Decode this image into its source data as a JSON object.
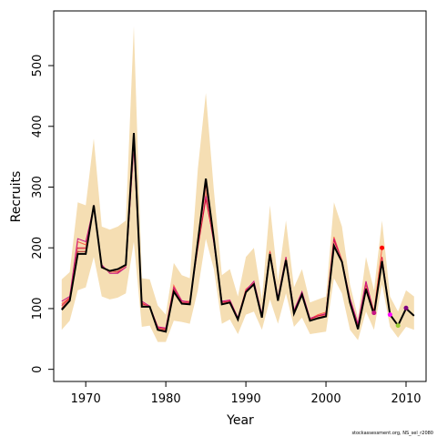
{
  "chart_data": {
    "type": "line",
    "title": "",
    "xlabel": "Year",
    "ylabel": "Recruits",
    "xlim": [
      1966,
      2012.5
    ],
    "ylim": [
      -20,
      590
    ],
    "xticks": [
      1970,
      1980,
      1990,
      2000,
      2010
    ],
    "yticks": [
      0,
      100,
      200,
      300,
      400,
      500
    ],
    "grid": false,
    "legend": "none",
    "footnote": "stockassessment.org, NS_sel_r2080",
    "colors": {
      "band": "#F5DEB3",
      "estimate": "#000000",
      "retro": [
        "#FF6347",
        "#C71585",
        "#DC143C",
        "#E9967A",
        "#B22222"
      ],
      "endpoints": [
        "#FF0000",
        "#C71585",
        "#FF00FF",
        "#9ACD32",
        "#800080"
      ]
    },
    "x": [
      1967,
      1968,
      1969,
      1970,
      1971,
      1972,
      1973,
      1974,
      1975,
      1976,
      1977,
      1978,
      1979,
      1980,
      1981,
      1982,
      1983,
      1984,
      1985,
      1986,
      1987,
      1988,
      1989,
      1990,
      1991,
      1992,
      1993,
      1994,
      1995,
      1996,
      1997,
      1998,
      1999,
      2000,
      2001,
      2002,
      2003,
      2004,
      2005,
      2006,
      2007,
      2008,
      2009,
      2010,
      2011
    ],
    "band_upper": [
      148,
      160,
      275,
      270,
      380,
      235,
      230,
      235,
      245,
      565,
      150,
      148,
      105,
      90,
      175,
      155,
      150,
      330,
      455,
      295,
      155,
      165,
      120,
      185,
      200,
      115,
      270,
      145,
      245,
      135,
      165,
      110,
      115,
      120,
      275,
      235,
      140,
      85,
      185,
      130,
      245,
      120,
      95,
      130,
      120
    ],
    "band_lower": [
      65,
      80,
      130,
      135,
      185,
      120,
      115,
      118,
      125,
      210,
      70,
      72,
      45,
      45,
      80,
      78,
      75,
      130,
      215,
      165,
      75,
      82,
      58,
      90,
      95,
      65,
      115,
      75,
      125,
      70,
      85,
      58,
      60,
      62,
      150,
      125,
      65,
      48,
      95,
      65,
      140,
      70,
      52,
      70,
      65
    ],
    "estimate": [
      98,
      113,
      190,
      190,
      270,
      168,
      162,
      165,
      172,
      389,
      103,
      103,
      65,
      62,
      128,
      108,
      107,
      210,
      314,
      215,
      107,
      110,
      82,
      127,
      140,
      85,
      190,
      113,
      180,
      92,
      123,
      80,
      84,
      87,
      203,
      177,
      110,
      66,
      132,
      90,
      178,
      90,
      72,
      100,
      88
    ],
    "retro_runs": [
      {
        "years": [
          1967,
          1968,
          1969,
          1970,
          1971,
          1972,
          1973,
          1974,
          1975,
          1976,
          1977,
          1978,
          1979,
          1980,
          1981,
          1982,
          1983,
          1984,
          1985,
          1986,
          1987,
          1988,
          1989,
          1990,
          1991,
          1992,
          1993,
          1994,
          1995,
          1996,
          1997,
          1998,
          1999,
          2000,
          2001,
          2002,
          2003,
          2004,
          2005,
          2006,
          2007
        ],
        "values": [
          108,
          118,
          210,
          205,
          265,
          170,
          160,
          160,
          170,
          370,
          110,
          102,
          70,
          66,
          138,
          112,
          112,
          205,
          290,
          210,
          110,
          113,
          84,
          132,
          142,
          88,
          195,
          115,
          182,
          95,
          126,
          83,
          90,
          94,
          218,
          180,
          115,
          72,
          142,
          95,
          200
        ]
      },
      {
        "years": [
          1967,
          1968,
          1969,
          1970,
          1971,
          1972,
          1973,
          1974,
          1975,
          1976,
          1977,
          1978,
          1979,
          1980,
          1981,
          1982,
          1983,
          1984,
          1985,
          1986,
          1987,
          1988,
          1989,
          1990,
          1991,
          1992,
          1993,
          1994,
          1995,
          1996,
          1997,
          1998,
          1999,
          2000,
          2001,
          2002,
          2003,
          2004,
          2005,
          2006
        ],
        "values": [
          112,
          120,
          215,
          210,
          268,
          172,
          158,
          158,
          168,
          365,
          112,
          104,
          70,
          68,
          135,
          113,
          110,
          208,
          285,
          208,
          112,
          114,
          85,
          130,
          145,
          90,
          192,
          118,
          185,
          97,
          128,
          84,
          88,
          92,
          215,
          178,
          117,
          75,
          145,
          93
        ]
      },
      {
        "years": [
          1967,
          1968,
          1969,
          1970,
          1971,
          1972,
          1973,
          1974,
          1975,
          1976,
          1977,
          1978,
          1979,
          1980,
          1981,
          1982,
          1983,
          1984,
          1985,
          1986,
          1987,
          1988,
          1989,
          1990,
          1991,
          1992,
          1993,
          1994,
          1995,
          1996,
          1997,
          1998,
          1999,
          2000,
          2001,
          2002,
          2003,
          2004,
          2005,
          2006,
          2007,
          2008
        ],
        "values": [
          105,
          117,
          200,
          200,
          268,
          167,
          162,
          160,
          172,
          375,
          108,
          103,
          68,
          65,
          132,
          110,
          110,
          200,
          280,
          212,
          110,
          112,
          83,
          129,
          140,
          87,
          193,
          114,
          183,
          94,
          125,
          82,
          88,
          90,
          212,
          177,
          113,
          70,
          138,
          94,
          185,
          90
        ]
      },
      {
        "years": [
          1967,
          1968,
          1969,
          1970,
          1971,
          1972,
          1973,
          1974,
          1975,
          1976,
          1977,
          1978,
          1979,
          1980,
          1981,
          1982,
          1983,
          1984,
          1985,
          1986,
          1987,
          1988,
          1989,
          1990,
          1991,
          1992,
          1993,
          1994,
          1995,
          1996,
          1997,
          1998,
          1999,
          2000,
          2001,
          2002,
          2003,
          2004,
          2005,
          2006,
          2007,
          2008,
          2009
        ],
        "values": [
          102,
          115,
          198,
          198,
          270,
          168,
          160,
          162,
          170,
          372,
          106,
          103,
          67,
          64,
          130,
          109,
          108,
          205,
          295,
          213,
          108,
          111,
          82,
          128,
          141,
          86,
          191,
          114,
          181,
          93,
          124,
          81,
          86,
          89,
          208,
          178,
          112,
          68,
          136,
          92,
          180,
          92,
          72
        ]
      },
      {
        "years": [
          1967,
          1968,
          1969,
          1970,
          1971,
          1972,
          1973,
          1974,
          1975,
          1976,
          1977,
          1978,
          1979,
          1980,
          1981,
          1982,
          1983,
          1984,
          1985,
          1986,
          1987,
          1988,
          1989,
          1990,
          1991,
          1992,
          1993,
          1994,
          1995,
          1996,
          1997,
          1998,
          1999,
          2000,
          2001,
          2002,
          2003,
          2004,
          2005,
          2006,
          2007,
          2008,
          2009,
          2010
        ],
        "values": [
          100,
          114,
          194,
          194,
          270,
          168,
          161,
          164,
          171,
          382,
          104,
          103,
          66,
          63,
          129,
          108,
          107,
          208,
          305,
          214,
          107,
          110,
          82,
          127,
          140,
          85,
          190,
          113,
          180,
          92,
          123,
          80,
          85,
          88,
          205,
          177,
          111,
          67,
          134,
          91,
          179,
          91,
          72,
          101
        ]
      }
    ],
    "endpoints": [
      {
        "x": 2007,
        "y": 200
      },
      {
        "x": 2006,
        "y": 93
      },
      {
        "x": 2008,
        "y": 90
      },
      {
        "x": 2009,
        "y": 72
      },
      {
        "x": 2010,
        "y": 101
      }
    ]
  }
}
